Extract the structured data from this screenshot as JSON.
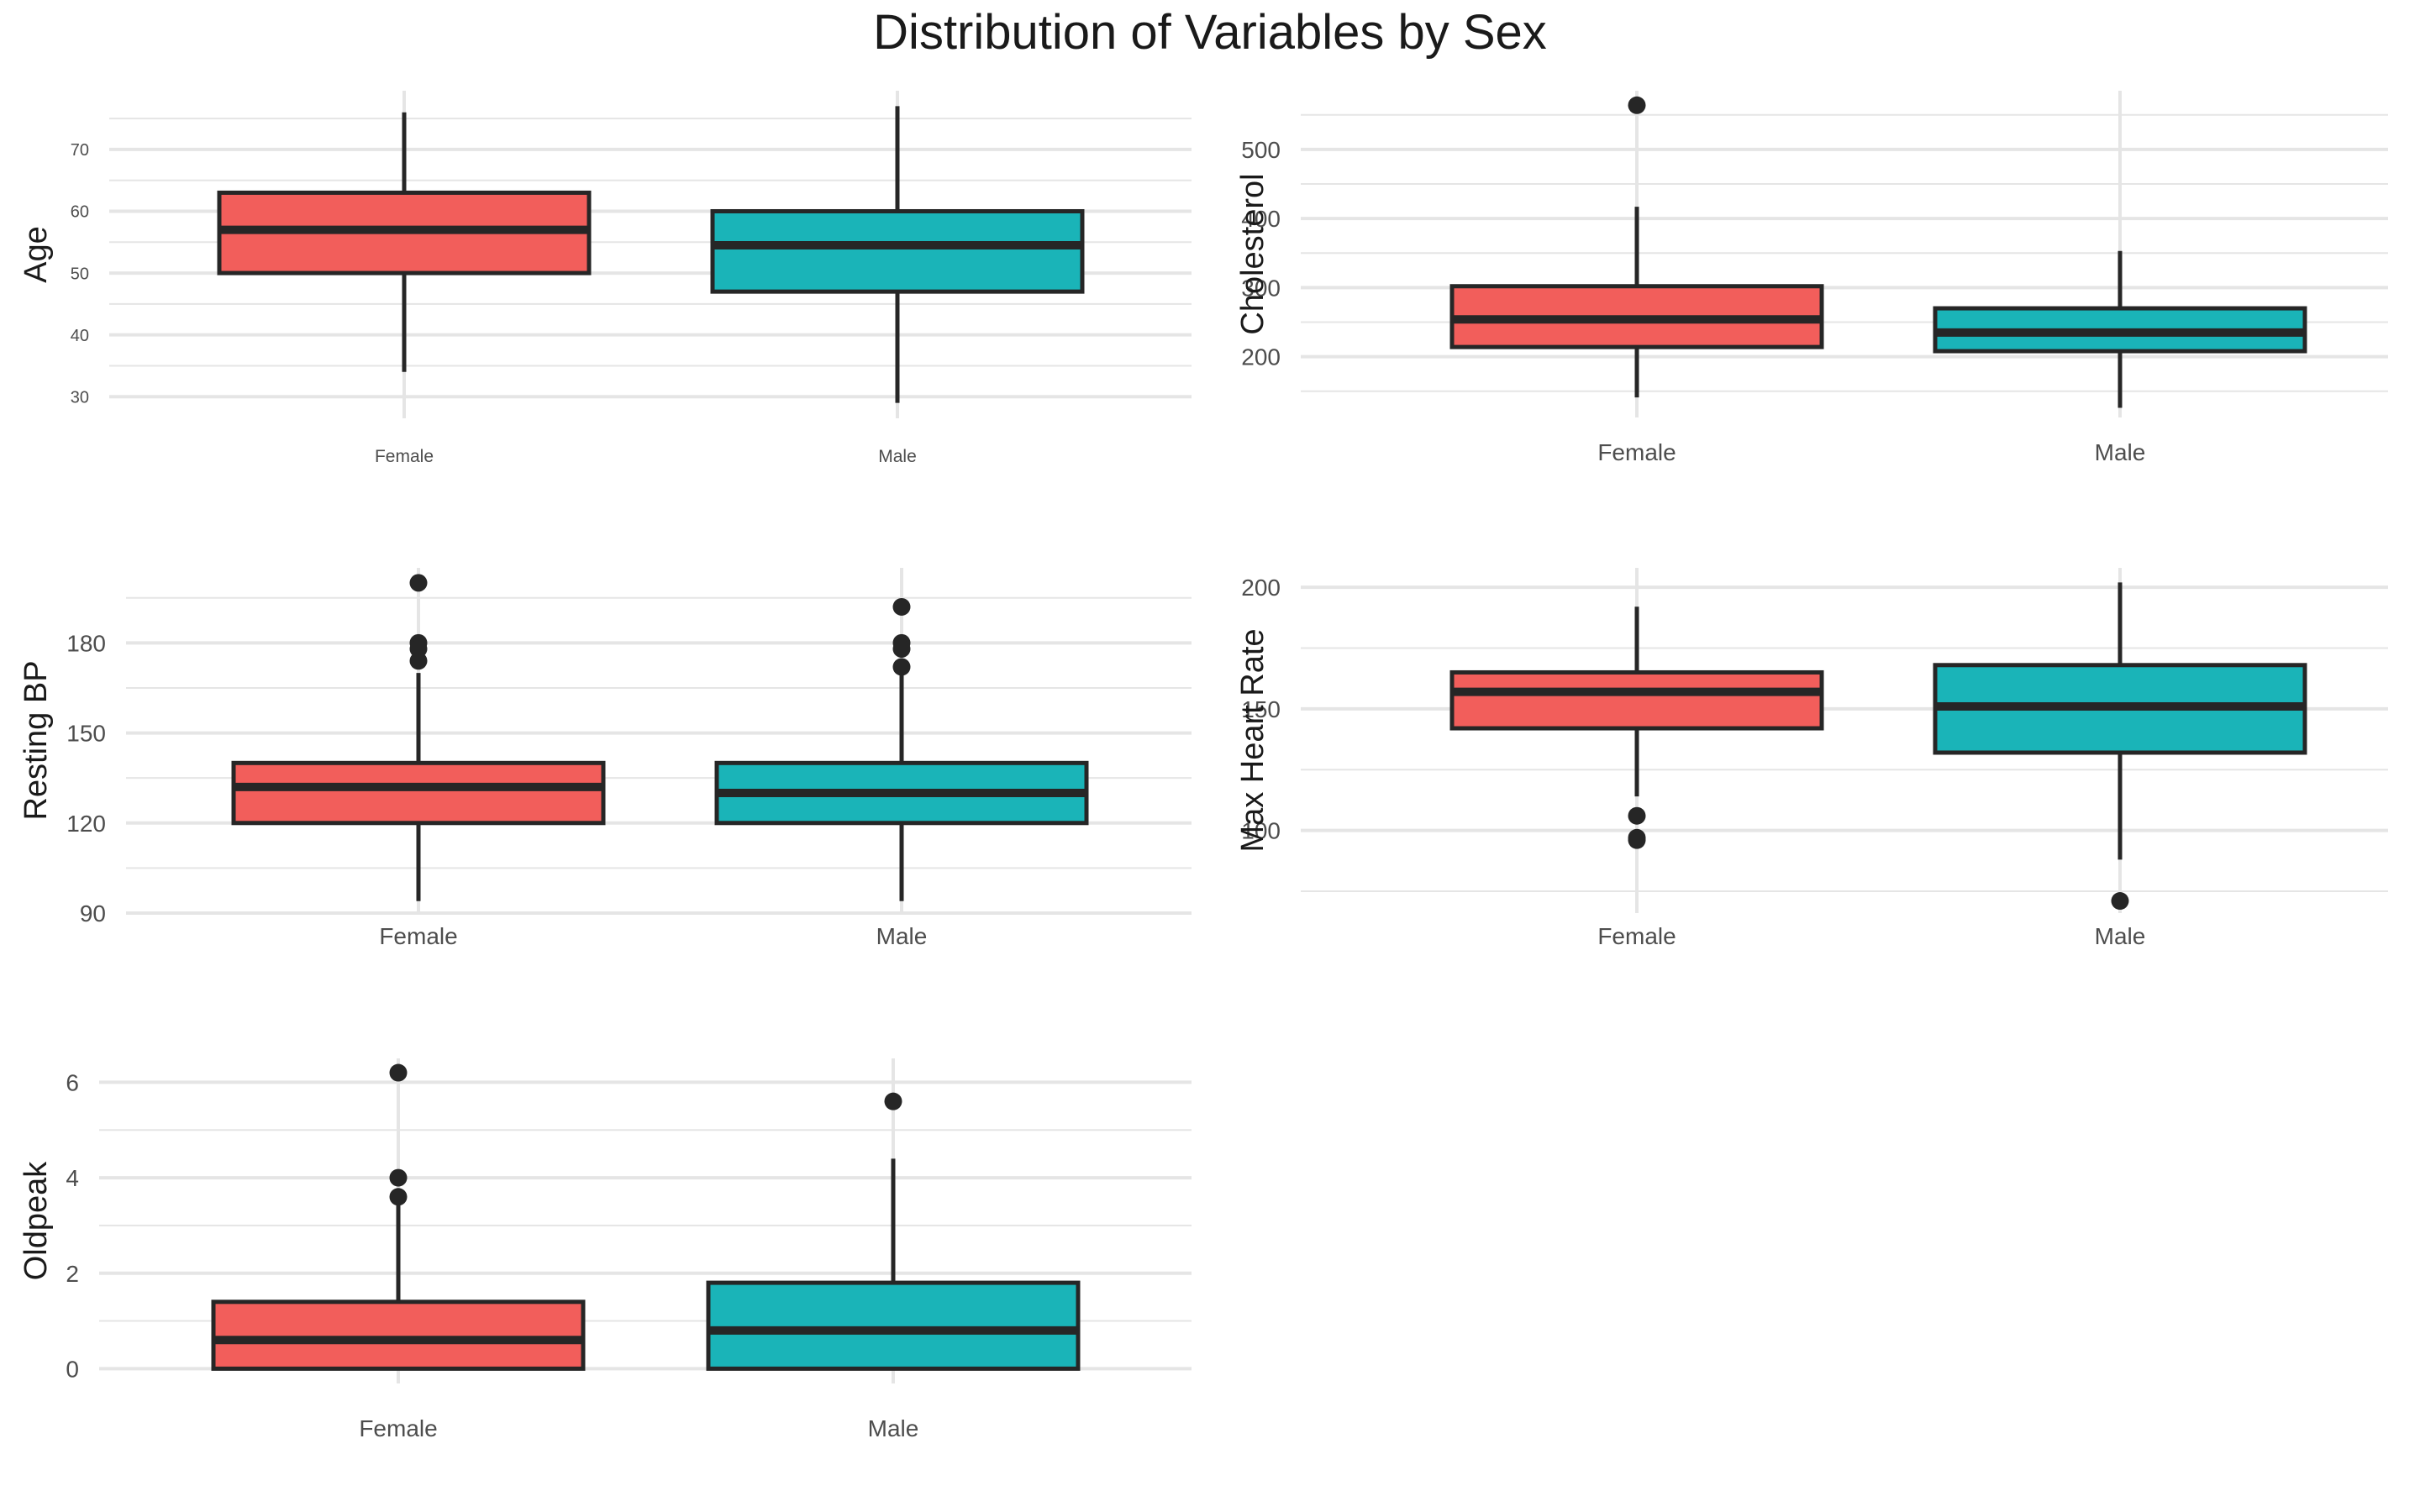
{
  "title": "Distribution of Variables by Sex",
  "colors": {
    "female": "#F25E5B",
    "male": "#1AB4B8",
    "outline": "#262626",
    "grid": "#E5E5E5"
  },
  "chart_data": [
    {
      "type": "box",
      "ylabel": "Age",
      "categories": [
        "Female",
        "Male"
      ],
      "yticks": [
        30,
        40,
        50,
        60,
        70
      ],
      "ylim": [
        26.5,
        79.5
      ],
      "boxes": [
        {
          "name": "Female",
          "min": 34,
          "q1": 50,
          "median": 57,
          "q3": 63,
          "max": 76,
          "outliers": []
        },
        {
          "name": "Male",
          "min": 29,
          "q1": 47,
          "median": 54.5,
          "q3": 60,
          "max": 77,
          "outliers": []
        }
      ]
    },
    {
      "type": "box",
      "ylabel": "Cholesterol",
      "categories": [
        "Female",
        "Male"
      ],
      "yticks": [
        200,
        300,
        400,
        500
      ],
      "ylim": [
        112,
        585
      ],
      "boxes": [
        {
          "name": "Female",
          "min": 141,
          "q1": 214,
          "median": 254,
          "q3": 302,
          "max": 417,
          "outliers": [
            564
          ]
        },
        {
          "name": "Male",
          "min": 126,
          "q1": 208,
          "median": 235,
          "q3": 270,
          "max": 353,
          "outliers": []
        }
      ]
    },
    {
      "type": "box",
      "ylabel": "Resting BP",
      "categories": [
        "Female",
        "Male"
      ],
      "yticks": [
        90,
        120,
        150,
        180
      ],
      "ylim": [
        90,
        205
      ],
      "boxes": [
        {
          "name": "Female",
          "min": 94,
          "q1": 120,
          "median": 132,
          "q3": 140,
          "max": 170,
          "outliers": [
            200,
            180,
            178,
            174
          ]
        },
        {
          "name": "Male",
          "min": 94,
          "q1": 120,
          "median": 130,
          "q3": 140,
          "max": 170,
          "outliers": [
            192,
            180,
            178,
            172
          ]
        }
      ]
    },
    {
      "type": "box",
      "ylabel": "Max Heart Rate",
      "categories": [
        "Female",
        "Male"
      ],
      "yticks": [
        100,
        150,
        200
      ],
      "ylim": [
        66,
        208
      ],
      "boxes": [
        {
          "name": "Female",
          "min": 114,
          "q1": 142,
          "median": 157,
          "q3": 165,
          "max": 192,
          "outliers": [
            106,
            97,
            96
          ]
        },
        {
          "name": "Male",
          "min": 88,
          "q1": 132,
          "median": 151,
          "q3": 168,
          "max": 202,
          "outliers": [
            71
          ]
        }
      ]
    },
    {
      "type": "box",
      "ylabel": "Oldpeak",
      "categories": [
        "Female",
        "Male"
      ],
      "yticks": [
        0,
        2,
        4,
        6
      ],
      "ylim": [
        -0.31,
        6.5
      ],
      "boxes": [
        {
          "name": "Female",
          "min": 0,
          "q1": 0,
          "median": 0.6,
          "q3": 1.4,
          "max": 3.5,
          "outliers": [
            6.2,
            4.0,
            3.6
          ]
        },
        {
          "name": "Male",
          "min": 0,
          "q1": 0,
          "median": 0.8,
          "q3": 1.8,
          "max": 4.4,
          "outliers": [
            5.6
          ]
        }
      ]
    }
  ]
}
